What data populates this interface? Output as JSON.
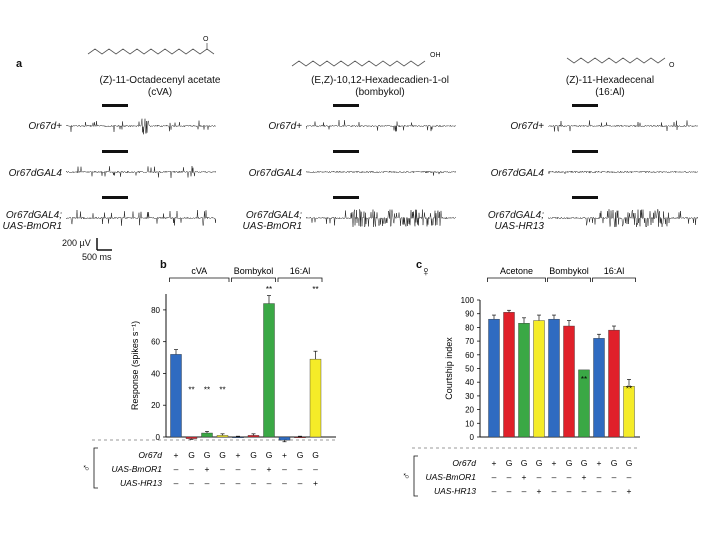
{
  "panel_a": {
    "letter": "a",
    "compounds": [
      {
        "name": "(Z)-11-Octadecenyl acetate",
        "short": "(cVA)",
        "structure_label": "O"
      },
      {
        "name": "(E,Z)-10,12-Hexadecadien-1-ol",
        "short": "(bombykol)",
        "structure_label": "OH"
      },
      {
        "name": "(Z)-11-Hexadecenal",
        "short": "(16:Al)",
        "structure_label": "O"
      }
    ],
    "rows": [
      {
        "label_line1": "Or67d+",
        "label_line2": ""
      },
      {
        "label_line1": "Or67dGAL4",
        "label_line2": ""
      },
      {
        "label_line1": "Or67dGAL4;",
        "label_line2": "UAS-BmOR1"
      }
    ],
    "row3_last_line2": "UAS-HR13",
    "scale_voltage": "200 µV",
    "scale_time": "500 ms"
  },
  "panel_b": {
    "letter": "b",
    "groups": [
      "cVA",
      "Bombykol",
      "16:Al"
    ],
    "group_sig": [
      "",
      "**",
      "**"
    ],
    "bar_sig": [
      "",
      "**",
      "**",
      "**",
      "",
      "",
      "",
      "",
      "",
      ""
    ],
    "genotype_rows": [
      {
        "label": "Or67d",
        "values": [
          "+",
          "G",
          "G",
          "G",
          "+",
          "G",
          "G",
          "+",
          "G",
          "G"
        ]
      },
      {
        "label": "UAS-BmOR1",
        "values": [
          "–",
          "–",
          "+",
          "–",
          "–",
          "–",
          "+",
          "–",
          "–",
          "–"
        ]
      },
      {
        "label": "UAS-HR13",
        "values": [
          "–",
          "–",
          "–",
          "–",
          "–",
          "–",
          "–",
          "–",
          "–",
          "+"
        ]
      }
    ],
    "sex_symbol": "♂"
  },
  "panel_c": {
    "letter": "c",
    "sex_symbol": "♀",
    "groups": [
      "Acetone",
      "Bombykol",
      "16:Al"
    ],
    "bar_sig": [
      "",
      "",
      "",
      "",
      "",
      "",
      "**",
      "",
      "",
      "**"
    ],
    "genotype_rows": [
      {
        "label": "Or67d",
        "values": [
          "+",
          "G",
          "G",
          "G",
          "+",
          "G",
          "G",
          "+",
          "G",
          "G"
        ]
      },
      {
        "label": "UAS-BmOR1",
        "values": [
          "–",
          "–",
          "+",
          "–",
          "–",
          "–",
          "+",
          "–",
          "–",
          "–"
        ]
      },
      {
        "label": "UAS-HR13",
        "values": [
          "–",
          "–",
          "–",
          "+",
          "–",
          "–",
          "–",
          "–",
          "–",
          "+"
        ]
      }
    ],
    "sex_symbol_rows": "♂"
  },
  "colors": {
    "blue": "#2f6bc1",
    "red": "#e0202a",
    "green": "#3aa845",
    "yellow": "#f5ec28"
  },
  "chart_data": [
    {
      "type": "bar",
      "title": "",
      "ylabel": "Response (spikes s⁻¹)",
      "ylim": [
        0,
        90
      ],
      "yticks": [
        0,
        20,
        40,
        60,
        80
      ],
      "categories": [
        "cVA +",
        "cVA G",
        "cVA G+BmOR1",
        "cVA G+HR13",
        "Bombykol +",
        "Bombykol G",
        "Bombykol G+BmOR1",
        "16:Al +",
        "16:Al G",
        "16:Al G+HR13"
      ],
      "values": [
        52,
        -1,
        2.5,
        1,
        0,
        1,
        84,
        -2,
        0,
        49
      ],
      "errors": [
        3,
        0.5,
        1,
        1,
        0.5,
        1,
        5,
        1,
        0.5,
        5
      ],
      "bar_colors": [
        "blue",
        "red",
        "green",
        "yellow",
        "blue",
        "red",
        "green",
        "blue",
        "red",
        "yellow"
      ]
    },
    {
      "type": "bar",
      "title": "",
      "ylabel": "Courtship index",
      "ylim": [
        0,
        100
      ],
      "yticks": [
        0,
        10,
        20,
        30,
        40,
        50,
        60,
        70,
        80,
        90,
        100
      ],
      "categories": [
        "Acetone +",
        "Acetone G",
        "Acetone G+BmOR1",
        "Acetone G+HR13",
        "Bombykol +",
        "Bombykol G",
        "Bombykol G+BmOR1",
        "16:Al +",
        "16:Al G",
        "16:Al G+HR13"
      ],
      "values": [
        86,
        91,
        83,
        85,
        86,
        81,
        49,
        72,
        78,
        37
      ],
      "errors": [
        3,
        1.5,
        4,
        4,
        3,
        4,
        0,
        3,
        3,
        5
      ],
      "bar_colors": [
        "blue",
        "red",
        "green",
        "yellow",
        "blue",
        "red",
        "green",
        "blue",
        "red",
        "yellow"
      ]
    }
  ]
}
